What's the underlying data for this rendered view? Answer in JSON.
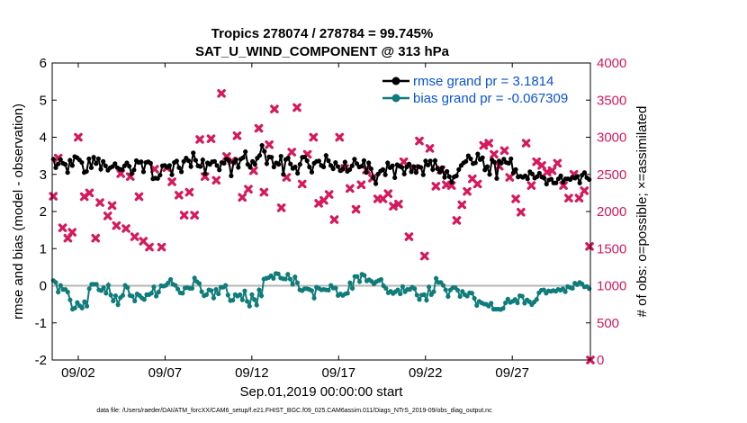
{
  "chart_data": {
    "type": "line",
    "title": "Tropics 278074 / 278784 = 99.745%",
    "subtitle": "SAT_U_WIND_COMPONENT @ 313 hPa",
    "xlabel": "Sep.01,2019 00:00:00 start",
    "ylabel": "rmse and bias (model - observation)",
    "y2label": "# of obs: o=possible; ×=assimilated",
    "footer": "data file: /Users/raeder/DAI/ATM_forcXX/CAM6_setup/f.e21.FHIST_BGC.f09_025.CAM6assim.011/Diags_NTrS_2019-09/obs_diag_output.nc",
    "xlim": [
      0.0,
      31.0
    ],
    "ylim": [
      -2,
      6
    ],
    "y2lim": [
      0,
      4000
    ],
    "x_ticks": [
      1.5,
      6.5,
      11.5,
      16.5,
      21.5,
      26.5
    ],
    "x_tick_labels": [
      "09/02",
      "09/07",
      "09/12",
      "09/17",
      "09/22",
      "09/27"
    ],
    "y_ticks": [
      -2,
      -1,
      0,
      1,
      2,
      3,
      4,
      5,
      6
    ],
    "y_tick_labels": [
      "-2",
      "-1",
      "0",
      "1",
      "2",
      "3",
      "4",
      "5",
      "6"
    ],
    "y2_ticks": [
      0,
      500,
      1000,
      1500,
      2000,
      2500,
      3000,
      3500,
      4000
    ],
    "y2_tick_labels": [
      "0",
      "500",
      "1000",
      "1500",
      "2000",
      "2500",
      "3000",
      "3500",
      "4000"
    ],
    "legend_position": "top-right",
    "colors": {
      "rmse": "#000000",
      "bias": "#0f7c7a",
      "obs": "#d6185c",
      "legend_text": "#0a52d6",
      "zero_line": "#b4b4b4"
    },
    "series": [
      {
        "name": "rmse grand pr = 3.1814",
        "marker": "circle",
        "values": [
          3.41,
          3.18,
          3.28,
          3.4,
          3.3,
          3.27,
          3.05,
          3.38,
          3.24,
          3.48,
          3.45,
          3.39,
          3.32,
          3.05,
          3.08,
          3.42,
          3.18,
          3.46,
          3.29,
          3.42,
          3.14,
          3.35,
          3.23,
          3.11,
          3.18,
          3.21,
          3.29,
          3.18,
          3.14,
          3.13,
          3.23,
          3.31,
          3.22,
          3.02,
          3.12,
          3.37,
          3.32,
          3.34,
          3.07,
          3.32,
          3.34,
          3.3,
          2.88,
          2.9,
          2.89,
          2.98,
          3.23,
          3.24,
          3.19,
          3.24,
          2.99,
          3.32,
          3.36,
          3.18,
          3.07,
          3.35,
          3.44,
          3.37,
          3.21,
          3.58,
          3.38,
          3.23,
          3.21,
          3.39,
          3.02,
          3.31,
          3.27,
          3.34,
          3.35,
          3.24,
          3.12,
          3.32,
          3.3,
          3.41,
          3.37,
          2.96,
          3.32,
          3.4,
          3.19,
          3.41,
          3.45,
          3.61,
          3.27,
          3.19,
          3.35,
          3.27,
          3.44,
          3.51,
          3.78,
          3.62,
          3.29,
          3.47,
          3.46,
          3.2,
          3.31,
          3.27,
          3.49,
          3.0,
          3.4,
          3.44,
          3.28,
          3.16,
          3.2,
          3.03,
          3.27,
          3.46,
          3.47,
          3.37,
          3.2,
          3.06,
          3.3,
          3.35,
          3.36,
          3.24,
          3.2,
          3.51,
          3.37,
          3.24,
          3.15,
          3.32,
          3.21,
          3.1,
          3.15,
          3.33,
          3.08,
          3.13,
          3.23,
          3.41,
          3.29,
          3.2,
          3.22,
          3.37,
          3.05,
          3.31,
          3.15,
          2.91,
          2.75,
          3.01,
          3.09,
          3.13,
          2.99,
          3.31,
          3.18,
          3.23,
          2.91,
          3.26,
          3.22,
          3.19,
          3.01,
          3.2,
          3.28,
          3.07,
          3.21,
          3.05,
          3.21,
          3.19,
          2.99,
          3.36,
          3.25,
          3.36,
          3.13,
          3.37,
          3.15,
          3.06,
          3.18,
          2.92,
          3.08,
          2.94,
          2.79,
          2.93,
          2.96,
          3.13,
          3.24,
          3.31,
          3.35,
          3.5,
          3.42,
          3.29,
          3.31,
          3.55,
          3.4,
          3.45,
          3.12,
          3.21,
          3.0,
          3.39,
          3.33,
          2.89,
          3.36,
          3.31,
          3.41,
          3.32,
          3.3,
          3.42,
          3.04,
          3.13,
          2.93,
          2.95,
          2.92,
          2.96,
          2.88,
          3.07,
          3.01,
          2.9,
          2.94,
          3.03,
          2.93,
          2.9,
          2.74,
          2.85,
          2.87,
          2.77,
          2.77,
          2.88,
          2.96,
          2.79,
          2.88,
          2.88,
          2.86,
          2.92,
          2.9,
          2.95,
          2.77,
          2.98,
          3.05,
          2.91,
          2.86
        ]
      },
      {
        "name": "bias grand pr = -0.067309",
        "marker": "circle",
        "values": [
          0.14,
          0.09,
          -0.17,
          0.01,
          -0.1,
          -0.1,
          -0.17,
          -0.38,
          -0.63,
          -0.6,
          -0.45,
          -0.54,
          -0.6,
          -0.43,
          -0.55,
          -0.08,
          0.04,
          0.04,
          0.04,
          -0.11,
          -0.13,
          -0.05,
          -0.2,
          0.02,
          -0.25,
          -0.41,
          -0.27,
          -0.51,
          -0.32,
          -0.26,
          0.01,
          -0.05,
          -0.26,
          -0.28,
          -0.41,
          -0.22,
          -0.26,
          -0.33,
          -0.37,
          -0.24,
          -0.24,
          -0.2,
          -0.03,
          -0.28,
          -0.17,
          0.0,
          -0.01,
          0.01,
          0.08,
          0.17,
          0.04,
          0.01,
          -0.09,
          -0.19,
          -0.2,
          -0.06,
          -0.05,
          -0.07,
          -0.07,
          0.21,
          0.11,
          0.06,
          -0.16,
          -0.27,
          -0.24,
          -0.11,
          -0.13,
          -0.33,
          -0.1,
          -0.22,
          -0.04,
          -0.04,
          0.01,
          -0.25,
          -0.4,
          -0.39,
          -0.24,
          -0.28,
          -0.24,
          -0.38,
          -0.14,
          -0.42,
          -0.55,
          -0.24,
          -0.37,
          -0.52,
          -0.11,
          -0.27,
          0.18,
          0.2,
          0.22,
          0.27,
          0.2,
          0.33,
          0.32,
          0.21,
          0.19,
          0.18,
          0.31,
          0.18,
          0.04,
          0.24,
          0.08,
          -0.11,
          -0.13,
          -0.08,
          -0.08,
          -0.1,
          -0.13,
          -0.33,
          -0.04,
          -0.07,
          -0.11,
          -0.1,
          -0.11,
          -0.12,
          0.01,
          -0.06,
          -0.06,
          -0.26,
          -0.22,
          -0.26,
          -0.22,
          -0.2,
          0.08,
          -0.07,
          0.25,
          0.25,
          0.11,
          0.31,
          0.28,
          0.13,
          0.16,
          0.12,
          0.05,
          0.11,
          0.14,
          0.17,
          0.0,
          -0.07,
          -0.19,
          -0.15,
          -0.21,
          -0.16,
          -0.11,
          -0.22,
          -0.02,
          -0.16,
          -0.1,
          -0.1,
          -0.04,
          -0.08,
          -0.25,
          -0.37,
          -0.25,
          -0.24,
          -0.39,
          -0.03,
          -0.24,
          -0.16,
          0.2,
          0.09,
          0.09,
          0.01,
          -0.11,
          -0.29,
          -0.11,
          -0.05,
          -0.05,
          -0.12,
          -0.29,
          -0.15,
          -0.24,
          -0.28,
          -0.19,
          -0.2,
          -0.34,
          -0.53,
          -0.42,
          -0.46,
          -0.49,
          -0.5,
          -0.55,
          -0.47,
          -0.63,
          -0.63,
          -0.63,
          -0.64,
          -0.61,
          -0.46,
          -0.36,
          -0.45,
          -0.42,
          -0.37,
          -0.46,
          -0.27,
          -0.28,
          -0.47,
          -0.38,
          -0.43,
          -0.51,
          -0.44,
          -0.37,
          -0.19,
          -0.12,
          -0.11,
          -0.2,
          -0.14,
          -0.15,
          -0.13,
          -0.15,
          -0.1,
          -0.12,
          -0.08,
          -0.16,
          -0.02,
          -0.05,
          -0.07,
          0.07,
          0.03,
          0.09,
          0.05,
          -0.03,
          -0.02,
          -0.08
        ]
      },
      {
        "name": "# of obs (possible / assimilated)",
        "marker": "x",
        "axis": "right",
        "points": [
          [
            0.06,
            2205
          ],
          [
            0.35,
            2720
          ],
          [
            0.6,
            1780
          ],
          [
            0.9,
            1640
          ],
          [
            1.15,
            1720
          ],
          [
            1.5,
            3000
          ],
          [
            1.85,
            2200
          ],
          [
            2.15,
            2250
          ],
          [
            2.5,
            1640
          ],
          [
            2.75,
            2120
          ],
          [
            3.2,
            1940
          ],
          [
            3.45,
            2080
          ],
          [
            3.7,
            1810
          ],
          [
            3.95,
            2510
          ],
          [
            4.25,
            1770
          ],
          [
            4.5,
            2470
          ],
          [
            4.75,
            1660
          ],
          [
            5.0,
            2200
          ],
          [
            5.25,
            1600
          ],
          [
            5.6,
            1520
          ],
          [
            5.9,
            2570
          ],
          [
            6.3,
            1520
          ],
          [
            6.6,
            2590
          ],
          [
            6.9,
            2400
          ],
          [
            7.3,
            2220
          ],
          [
            7.6,
            1950
          ],
          [
            7.9,
            2260
          ],
          [
            8.2,
            1950
          ],
          [
            8.5,
            2970
          ],
          [
            8.8,
            2470
          ],
          [
            9.15,
            2980
          ],
          [
            9.45,
            2420
          ],
          [
            9.75,
            3590
          ],
          [
            10.05,
            2740
          ],
          [
            10.35,
            2680
          ],
          [
            10.65,
            3020
          ],
          [
            10.95,
            2190
          ],
          [
            11.3,
            2300
          ],
          [
            11.6,
            2550
          ],
          [
            11.9,
            3120
          ],
          [
            12.2,
            2260
          ],
          [
            12.5,
            2900
          ],
          [
            12.8,
            3380
          ],
          [
            13.2,
            2050
          ],
          [
            13.5,
            2460
          ],
          [
            13.8,
            2800
          ],
          [
            14.1,
            3400
          ],
          [
            14.4,
            2370
          ],
          [
            14.7,
            2770
          ],
          [
            15.05,
            3000
          ],
          [
            15.35,
            2110
          ],
          [
            15.65,
            2150
          ],
          [
            15.95,
            2230
          ],
          [
            16.25,
            1890
          ],
          [
            16.55,
            3000
          ],
          [
            16.85,
            2580
          ],
          [
            17.15,
            2310
          ],
          [
            17.5,
            2030
          ],
          [
            17.8,
            2360
          ],
          [
            18.1,
            2560
          ],
          [
            18.45,
            2450
          ],
          [
            18.75,
            2170
          ],
          [
            19.05,
            2170
          ],
          [
            19.35,
            2240
          ],
          [
            19.65,
            2070
          ],
          [
            19.95,
            2100
          ],
          [
            20.25,
            2670
          ],
          [
            20.55,
            1660
          ],
          [
            20.85,
            2580
          ],
          [
            21.15,
            2950
          ],
          [
            21.45,
            1400
          ],
          [
            21.75,
            2850
          ],
          [
            22.1,
            2340
          ],
          [
            22.4,
            2560
          ],
          [
            22.7,
            2360
          ],
          [
            23.0,
            2350
          ],
          [
            23.3,
            1880
          ],
          [
            23.6,
            2090
          ],
          [
            23.9,
            2270
          ],
          [
            24.2,
            2440
          ],
          [
            24.5,
            2370
          ],
          [
            24.85,
            2890
          ],
          [
            25.15,
            2920
          ],
          [
            25.45,
            2770
          ],
          [
            25.75,
            2610
          ],
          [
            26.05,
            2820
          ],
          [
            26.35,
            2460
          ],
          [
            26.7,
            2170
          ],
          [
            27.0,
            1990
          ],
          [
            27.3,
            2920
          ],
          [
            27.6,
            2350
          ],
          [
            27.9,
            2670
          ],
          [
            28.2,
            2620
          ],
          [
            28.5,
            2530
          ],
          [
            28.8,
            2550
          ],
          [
            29.1,
            2650
          ],
          [
            29.45,
            2350
          ],
          [
            29.75,
            2180
          ],
          [
            30.05,
            2500
          ],
          [
            30.35,
            2180
          ],
          [
            30.65,
            2280
          ],
          [
            30.95,
            1530
          ],
          [
            31.0,
            0
          ]
        ]
      }
    ]
  }
}
